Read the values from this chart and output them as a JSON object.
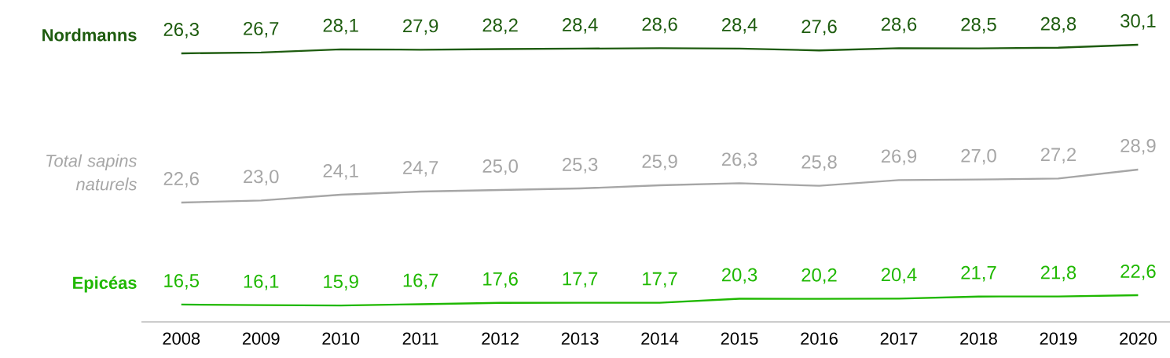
{
  "chart_data": [
    {
      "type": "line",
      "categories": [
        "2008",
        "2009",
        "2010",
        "2011",
        "2012",
        "2013",
        "2014",
        "2015",
        "2016",
        "2017",
        "2018",
        "2019",
        "2020"
      ],
      "series": [
        {
          "name": "Nordmanns",
          "color": "#1e5c0f",
          "values": [
            26.3,
            26.7,
            28.1,
            27.9,
            28.2,
            28.4,
            28.6,
            28.4,
            27.6,
            28.6,
            28.5,
            28.8,
            30.1
          ],
          "value_labels": [
            "26,3",
            "26,7",
            "28,1",
            "27,9",
            "28,2",
            "28,4",
            "28,6",
            "28,4",
            "27,6",
            "28,6",
            "28,5",
            "28,8",
            "30,1"
          ]
        }
      ],
      "tick_labels": false
    },
    {
      "type": "line",
      "categories": [
        "2008",
        "2009",
        "2010",
        "2011",
        "2012",
        "2013",
        "2014",
        "2015",
        "2016",
        "2017",
        "2018",
        "2019",
        "2020"
      ],
      "series": [
        {
          "name": "Total sapins naturels",
          "color": "#a6a6a6",
          "values": [
            22.6,
            23.0,
            24.1,
            24.7,
            25.0,
            25.3,
            25.9,
            26.3,
            25.8,
            26.9,
            27.0,
            27.2,
            28.9
          ],
          "value_labels": [
            "22,6",
            "23,0",
            "24,1",
            "24,7",
            "25,0",
            "25,3",
            "25,9",
            "26,3",
            "25,8",
            "26,9",
            "27,0",
            "27,2",
            "28,9"
          ]
        }
      ],
      "tick_labels": false
    },
    {
      "type": "line",
      "categories": [
        "2008",
        "2009",
        "2010",
        "2011",
        "2012",
        "2013",
        "2014",
        "2015",
        "2016",
        "2017",
        "2018",
        "2019",
        "2020"
      ],
      "series": [
        {
          "name": "Epicéas",
          "color": "#1fb800",
          "values": [
            16.5,
            16.1,
            15.9,
            16.7,
            17.6,
            17.7,
            17.7,
            20.3,
            20.2,
            20.4,
            21.7,
            21.8,
            22.6
          ],
          "value_labels": [
            "16,5",
            "16,1",
            "15,9",
            "16,7",
            "17,6",
            "17,7",
            "17,7",
            "20,3",
            "20,2",
            "20,4",
            "21,7",
            "21,8",
            "22,6"
          ]
        }
      ],
      "tick_labels": "x"
    }
  ]
}
